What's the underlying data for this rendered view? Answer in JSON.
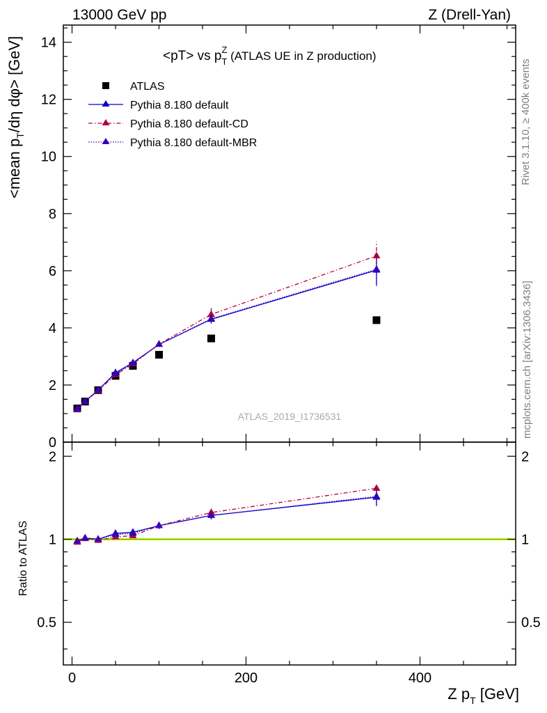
{
  "header": {
    "left": "13000 GeV pp",
    "right": "Z (Drell-Yan)"
  },
  "side_labels": {
    "rivet": "Rivet 3.1.10, ≥ 400k events",
    "mcplots": "mcplots.cern.ch [arXiv:1306.3436]"
  },
  "watermark": "ATLAS_2019_I1736531",
  "colors": {
    "atlas": "#000000",
    "default": "#0000d0",
    "cd": "#b0003a",
    "mbr": "#3a00b8",
    "band": "#ccff33",
    "unity": "#7aa000"
  },
  "chart_data": [
    {
      "type": "scatter",
      "title": "<pT> vs p_T^Z (ATLAS UE in Z production)",
      "xlabel": "Z p_T [GeV]",
      "ylabel": "<mean p_T/dη dφ> [GeV]",
      "xlim": [
        -10,
        510
      ],
      "ylim": [
        0,
        14.6
      ],
      "xticks": [
        0,
        200,
        400
      ],
      "yticks": [
        0,
        2,
        4,
        6,
        8,
        10,
        12,
        14
      ],
      "grid": false,
      "legend_position": "top-left",
      "x": [
        6,
        15,
        30,
        50,
        70,
        100,
        160,
        350
      ],
      "series": [
        {
          "name": "ATLAS",
          "style": "marker",
          "values": [
            1.18,
            1.42,
            1.82,
            2.32,
            2.67,
            3.06,
            3.63,
            4.27
          ]
        },
        {
          "name": "Pythia 8.180 default",
          "style": "solid",
          "values": [
            1.16,
            1.43,
            1.82,
            2.43,
            2.78,
            3.42,
            4.3,
            6.02
          ],
          "errors": [
            0.02,
            0.02,
            0.03,
            0.04,
            0.05,
            0.08,
            0.15,
            0.55
          ]
        },
        {
          "name": "Pythia 8.180 default-CD",
          "style": "dashdot",
          "values": [
            1.14,
            1.42,
            1.8,
            2.36,
            2.74,
            3.43,
            4.47,
            6.52
          ],
          "errors": [
            0.02,
            0.02,
            0.03,
            0.04,
            0.05,
            0.08,
            0.25,
            0.5
          ]
        },
        {
          "name": "Pythia 8.180 default-MBR",
          "style": "dotted",
          "values": [
            1.16,
            1.43,
            1.82,
            2.4,
            2.76,
            3.42,
            4.32,
            6.05
          ],
          "errors": [
            0.02,
            0.02,
            0.03,
            0.04,
            0.05,
            0.08,
            0.15,
            0.5
          ]
        }
      ]
    },
    {
      "type": "scatter",
      "title": "",
      "xlabel": "Z p_T [GeV]",
      "ylabel": "Ratio to ATLAS",
      "xlim": [
        -10,
        510
      ],
      "ylim": [
        0.35,
        2.25
      ],
      "log_y": true,
      "xticks": [
        0,
        200,
        400
      ],
      "yticks": [
        0.5,
        1,
        2
      ],
      "grid": false,
      "reference_band": [
        0.99,
        1.01
      ],
      "x": [
        6,
        15,
        30,
        50,
        70,
        100,
        160,
        350
      ],
      "series": [
        {
          "name": "Pythia 8.180 default",
          "style": "solid",
          "values": [
            0.985,
            1.01,
            1.0,
            1.05,
            1.06,
            1.12,
            1.22,
            1.42
          ],
          "errors": [
            0.01,
            0.01,
            0.01,
            0.02,
            0.02,
            0.03,
            0.04,
            0.1
          ]
        },
        {
          "name": "Pythia 8.180 default-CD",
          "style": "dashdot",
          "values": [
            0.975,
            1.005,
            0.99,
            1.02,
            1.03,
            1.12,
            1.25,
            1.53
          ],
          "errors": [
            0.01,
            0.01,
            0.01,
            0.02,
            0.02,
            0.03,
            0.05,
            0.06
          ]
        },
        {
          "name": "Pythia 8.180 default-MBR",
          "style": "dotted",
          "values": [
            0.985,
            1.01,
            1.0,
            1.04,
            1.05,
            1.12,
            1.22,
            1.43
          ],
          "errors": [
            0.01,
            0.01,
            0.01,
            0.02,
            0.02,
            0.03,
            0.04,
            0.1
          ]
        }
      ]
    }
  ]
}
